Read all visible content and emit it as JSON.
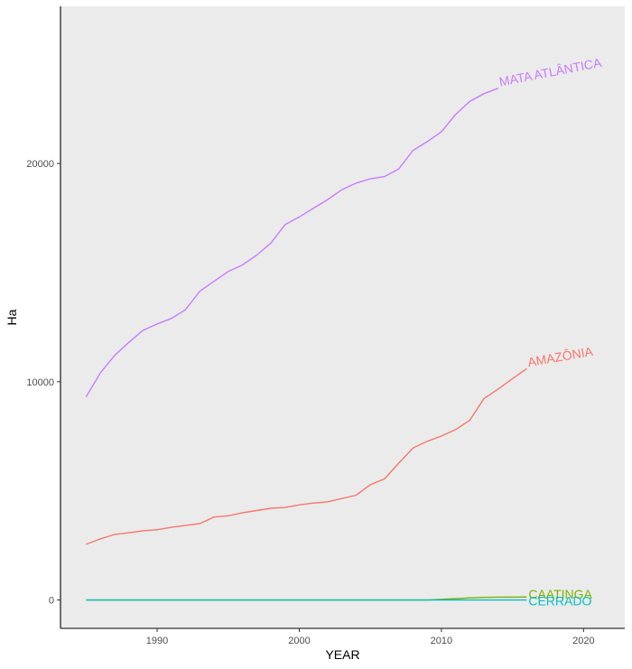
{
  "chart_data": {
    "type": "line",
    "xlabel": "YEAR",
    "ylabel": "Ha",
    "xlim": [
      1983.2,
      2022.9
    ],
    "ylim": [
      -1300,
      27200
    ],
    "x_ticks": [
      1990,
      2000,
      2010,
      2020
    ],
    "y_ticks": [
      0,
      10000,
      20000
    ],
    "grid": false,
    "legend": "none",
    "background": "#ebebeb",
    "series": [
      {
        "name": "MATA ATLÂNTICA",
        "color": "#c77cff",
        "x": [
          1985,
          1986,
          1987,
          1988,
          1989,
          1990,
          1991,
          1992,
          1993,
          1994,
          1995,
          1996,
          1997,
          1998,
          1999,
          2000,
          2001,
          2002,
          2003,
          2004,
          2005,
          2006,
          2007,
          2008,
          2009,
          2010,
          2011,
          2012,
          2013,
          2014
        ],
        "y": [
          9300,
          10400,
          11200,
          11800,
          12350,
          12650,
          12900,
          13300,
          14150,
          14600,
          15050,
          15350,
          15800,
          16350,
          17200,
          17550,
          17950,
          18350,
          18800,
          19100,
          19300,
          19400,
          19750,
          20600,
          21000,
          21450,
          22250,
          22850,
          23200,
          23450
        ]
      },
      {
        "name": "AMAZÔNIA",
        "color": "#f8766d",
        "x": [
          1985,
          1986,
          1987,
          1988,
          1989,
          1990,
          1991,
          1992,
          1993,
          1994,
          1995,
          1996,
          1997,
          1998,
          1999,
          2000,
          2001,
          2002,
          2003,
          2004,
          2005,
          2006,
          2007,
          2008,
          2009,
          2010,
          2011,
          2012,
          2013,
          2014,
          2015,
          2016
        ],
        "y": [
          2550,
          2800,
          3000,
          3080,
          3170,
          3220,
          3330,
          3420,
          3500,
          3800,
          3860,
          4000,
          4100,
          4200,
          4240,
          4360,
          4440,
          4500,
          4650,
          4800,
          5280,
          5550,
          6270,
          6960,
          7270,
          7510,
          7810,
          8240,
          9230,
          9670,
          10140,
          10600
        ]
      },
      {
        "name": "CAATINGA",
        "color": "#7cae00",
        "x": [
          1985,
          1990,
          1995,
          2000,
          2005,
          2009,
          2010,
          2011,
          2012,
          2013,
          2014,
          2015,
          2016
        ],
        "y": [
          0,
          0,
          0,
          0,
          0,
          0,
          30,
          60,
          100,
          120,
          130,
          130,
          140
        ]
      },
      {
        "name": "CERRADO",
        "color": "#00bfc4",
        "x": [
          1985,
          1990,
          1995,
          2000,
          2005,
          2010,
          2016
        ],
        "y": [
          0,
          0,
          0,
          0,
          0,
          0,
          0
        ]
      }
    ]
  }
}
